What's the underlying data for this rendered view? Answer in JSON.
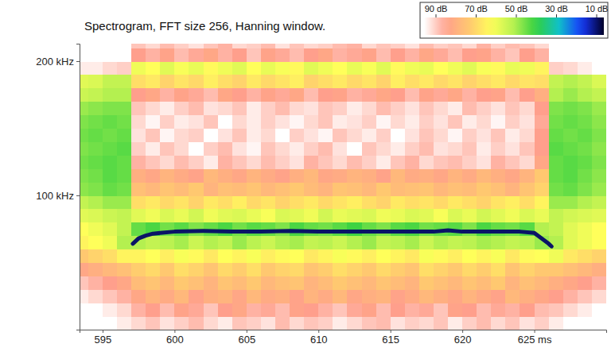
{
  "chart_data": {
    "type": "heatmap",
    "title": "Spectrogram, FFT size 256, Hanning window.",
    "xlim": [
      593.4,
      630
    ],
    "xticks": [
      595,
      600,
      605,
      610,
      615,
      620,
      {
        "value": 625,
        "label": "625 ms"
      }
    ],
    "ylim": [
      0,
      213
    ],
    "yticks": [
      {
        "value": 100,
        "label": "100 kHz"
      },
      {
        "value": 200,
        "label": "200 kHz"
      }
    ],
    "x_bins": [
      593,
      594,
      595,
      596,
      597,
      598,
      599,
      600,
      601,
      602,
      603,
      604,
      605,
      606,
      607,
      608,
      609,
      610,
      611,
      612,
      613,
      614,
      615,
      616,
      617,
      618,
      619,
      620,
      621,
      622,
      623,
      624,
      625,
      626,
      627,
      628,
      629,
      630
    ],
    "y_bins": [
      0,
      10,
      20,
      30,
      40,
      50,
      60,
      70,
      80,
      90,
      100,
      110,
      120,
      130,
      140,
      150,
      160,
      170,
      180,
      190,
      200,
      210,
      220
    ],
    "cells": [
      [
        90,
        90,
        90,
        88,
        86,
        84,
        87,
        85,
        83,
        86,
        88,
        84,
        85,
        87,
        83,
        86,
        84,
        85,
        88,
        86,
        84,
        83,
        87,
        85,
        86,
        84,
        88,
        85,
        83,
        86,
        84,
        87,
        85,
        88,
        90,
        90,
        90
      ],
      [
        90,
        90,
        88,
        86,
        82,
        80,
        83,
        79,
        81,
        84,
        80,
        78,
        82,
        81,
        83,
        79,
        80,
        82,
        84,
        81,
        79,
        83,
        80,
        82,
        81,
        84,
        79,
        80,
        83,
        81,
        82,
        80,
        83,
        84,
        86,
        88,
        90
      ],
      [
        88,
        86,
        84,
        82,
        78,
        75,
        77,
        74,
        79,
        76,
        75,
        78,
        74,
        77,
        76,
        79,
        75,
        77,
        74,
        78,
        76,
        75,
        79,
        77,
        74,
        76,
        78,
        75,
        77,
        79,
        74,
        76,
        78,
        80,
        82,
        84,
        86
      ],
      [
        84,
        82,
        80,
        78,
        73,
        71,
        74,
        70,
        72,
        75,
        71,
        73,
        70,
        74,
        72,
        71,
        75,
        73,
        70,
        72,
        74,
        71,
        73,
        75,
        70,
        72,
        74,
        71,
        73,
        70,
        75,
        72,
        74,
        76,
        78,
        80,
        82
      ],
      [
        78,
        76,
        74,
        72,
        69,
        67,
        70,
        66,
        68,
        71,
        67,
        69,
        66,
        70,
        68,
        67,
        71,
        69,
        66,
        68,
        70,
        67,
        69,
        71,
        66,
        68,
        70,
        67,
        69,
        66,
        71,
        68,
        70,
        70,
        72,
        74,
        76
      ],
      [
        70,
        68,
        66,
        62,
        62,
        60,
        63,
        59,
        61,
        64,
        60,
        62,
        59,
        63,
        61,
        60,
        64,
        62,
        59,
        61,
        63,
        60,
        62,
        64,
        59,
        61,
        63,
        60,
        62,
        59,
        64,
        61,
        60,
        58,
        64,
        66,
        68
      ],
      [
        62,
        60,
        58,
        50,
        50,
        52,
        51,
        49,
        53,
        50,
        52,
        48,
        51,
        53,
        50,
        49,
        52,
        51,
        53,
        50,
        48,
        52,
        51,
        49,
        53,
        50,
        52,
        51,
        49,
        50,
        52,
        51,
        48,
        50,
        56,
        58,
        60
      ],
      [
        60,
        58,
        56,
        52,
        44,
        42,
        45,
        43,
        46,
        44,
        42,
        45,
        43,
        44,
        46,
        42,
        44,
        45,
        43,
        41,
        44,
        46,
        43,
        42,
        45,
        44,
        43,
        46,
        42,
        44,
        45,
        43,
        50,
        52,
        56,
        58,
        60
      ],
      [
        56,
        55,
        53,
        52,
        56,
        58,
        55,
        57,
        54,
        58,
        56,
        55,
        57,
        59,
        55,
        56,
        58,
        54,
        57,
        56,
        55,
        58,
        57,
        55,
        56,
        59,
        55,
        57,
        54,
        56,
        58,
        55,
        57,
        52,
        54,
        55,
        56
      ],
      [
        52,
        50,
        48,
        48,
        66,
        64,
        67,
        65,
        68,
        64,
        66,
        63,
        67,
        65,
        68,
        66,
        64,
        67,
        65,
        63,
        66,
        68,
        64,
        66,
        65,
        67,
        64,
        66,
        68,
        65,
        63,
        66,
        62,
        48,
        48,
        50,
        52
      ],
      [
        47,
        46,
        44,
        45,
        72,
        74,
        71,
        73,
        70,
        75,
        72,
        73,
        71,
        74,
        72,
        70,
        73,
        75,
        71,
        72,
        74,
        70,
        73,
        72,
        71,
        74,
        72,
        73,
        70,
        72,
        75,
        71,
        68,
        45,
        44,
        46,
        48
      ],
      [
        46,
        45,
        43,
        44,
        76,
        78,
        75,
        77,
        79,
        74,
        76,
        78,
        75,
        77,
        79,
        76,
        74,
        78,
        77,
        75,
        76,
        79,
        74,
        77,
        76,
        78,
        75,
        77,
        74,
        76,
        78,
        75,
        70,
        44,
        43,
        45,
        47
      ],
      [
        45,
        44,
        43,
        44,
        82,
        84,
        86,
        83,
        85,
        88,
        82,
        84,
        86,
        83,
        85,
        87,
        82,
        84,
        86,
        83,
        85,
        88,
        84,
        82,
        86,
        84,
        83,
        85,
        87,
        82,
        84,
        86,
        78,
        44,
        43,
        44,
        46
      ],
      [
        46,
        45,
        44,
        43,
        85,
        88,
        84,
        86,
        90,
        85,
        83,
        87,
        89,
        84,
        86,
        88,
        85,
        83,
        87,
        90,
        84,
        86,
        88,
        85,
        83,
        87,
        86,
        84,
        88,
        85,
        87,
        84,
        80,
        43,
        44,
        45,
        47
      ],
      [
        45,
        44,
        45,
        44,
        87,
        84,
        89,
        86,
        85,
        90,
        87,
        84,
        88,
        86,
        90,
        85,
        87,
        89,
        84,
        86,
        88,
        85,
        90,
        87,
        84,
        86,
        89,
        85,
        87,
        84,
        88,
        86,
        80,
        44,
        45,
        44,
        46
      ],
      [
        46,
        45,
        44,
        45,
        86,
        89,
        85,
        88,
        87,
        84,
        90,
        86,
        88,
        85,
        87,
        89,
        86,
        84,
        88,
        87,
        85,
        89,
        86,
        88,
        85,
        87,
        84,
        88,
        86,
        89,
        85,
        87,
        81,
        45,
        44,
        45,
        47
      ],
      [
        48,
        47,
        46,
        46,
        84,
        86,
        88,
        85,
        83,
        87,
        86,
        84,
        88,
        85,
        83,
        86,
        87,
        84,
        85,
        88,
        86,
        83,
        85,
        87,
        84,
        86,
        88,
        83,
        85,
        87,
        84,
        86,
        80,
        46,
        45,
        46,
        48
      ],
      [
        53,
        52,
        50,
        50,
        80,
        78,
        82,
        79,
        81,
        83,
        78,
        80,
        82,
        79,
        81,
        78,
        83,
        80,
        79,
        82,
        81,
        78,
        80,
        83,
        79,
        81,
        78,
        82,
        80,
        79,
        83,
        80,
        76,
        50,
        48,
        50,
        52
      ],
      [
        56,
        55,
        52,
        52,
        66,
        64,
        68,
        65,
        67,
        63,
        66,
        68,
        64,
        67,
        65,
        63,
        68,
        66,
        64,
        67,
        65,
        68,
        63,
        66,
        64,
        67,
        65,
        68,
        66,
        64,
        67,
        65,
        66,
        52,
        50,
        52,
        55
      ],
      [
        88,
        88,
        86,
        85,
        58,
        60,
        56,
        59,
        57,
        61,
        58,
        56,
        60,
        57,
        59,
        61,
        56,
        58,
        60,
        57,
        59,
        56,
        61,
        58,
        57,
        60,
        58,
        56,
        59,
        61,
        57,
        58,
        62,
        85,
        86,
        88,
        90
      ],
      [
        90,
        90,
        90,
        90,
        80,
        82,
        79,
        83,
        81,
        78,
        82,
        80,
        84,
        79,
        81,
        83,
        80,
        78,
        82,
        81,
        79,
        83,
        80,
        82,
        78,
        81,
        83,
        80,
        79,
        82,
        84,
        80,
        82,
        90,
        90,
        90,
        90
      ],
      [
        90,
        90,
        90,
        90,
        84,
        86,
        83,
        85,
        87,
        84,
        82,
        86,
        85,
        83,
        87,
        84,
        86,
        85,
        83,
        82,
        86,
        84,
        85,
        87,
        83,
        85,
        84,
        86,
        82,
        85,
        83,
        84,
        86,
        90,
        90,
        90,
        90
      ]
    ],
    "colorbar": {
      "range": [
        90,
        10
      ],
      "ticks": [
        {
          "value": 90,
          "label": "90 dB"
        },
        {
          "value": 70,
          "label": "70 dB"
        },
        {
          "value": 50,
          "label": "50 dB"
        },
        {
          "value": 30,
          "label": "30 dB"
        },
        {
          "value": 10,
          "label": "10 dB"
        }
      ]
    },
    "series": [
      {
        "type": "line",
        "color": "#0a1466",
        "x": [
          597.1,
          597.5,
          598,
          598.5,
          599,
          600,
          602,
          604,
          606,
          608,
          610,
          612,
          614,
          616,
          618,
          619,
          620,
          622,
          624,
          625,
          625.5,
          626,
          626.2
        ],
        "values": [
          64,
          68,
          70,
          71.5,
          72,
          73,
          73.5,
          73,
          73,
          73.5,
          73,
          73,
          73,
          73,
          73,
          74,
          73,
          73,
          73,
          72,
          68,
          64,
          62
        ]
      }
    ]
  }
}
